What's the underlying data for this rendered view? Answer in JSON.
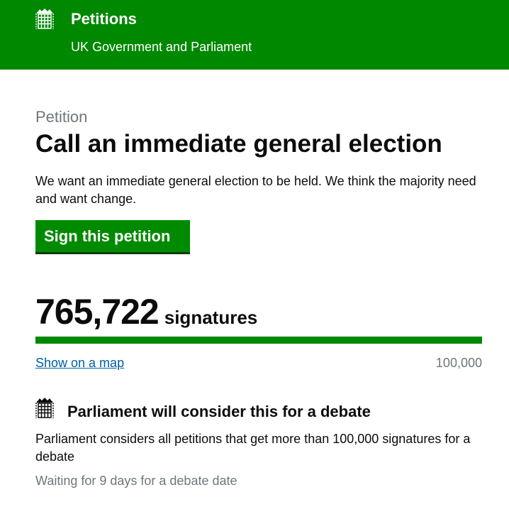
{
  "header": {
    "title": "Petitions",
    "subtitle": "UK Government and Parliament",
    "logo_icon": "portcullis-icon"
  },
  "petition": {
    "kicker": "Petition",
    "title": "Call an immediate general election",
    "description": "We want an immediate general election to be held. We think the majority need and want change.",
    "sign_label": "Sign this petition"
  },
  "signatures": {
    "count": "765,722",
    "label": "signatures",
    "progress_percent": 100,
    "map_link": "Show on a map",
    "target": "100,000"
  },
  "debate": {
    "icon": "portcullis-icon",
    "title": "Parliament will consider this for a debate",
    "text": "Parliament considers all petitions that get more than 100,000 signatures for a debate",
    "status": "Waiting for 9 days for a debate date"
  },
  "colors": {
    "brand_green": "#008800",
    "link": "#005ea5",
    "muted": "#6f777b"
  }
}
